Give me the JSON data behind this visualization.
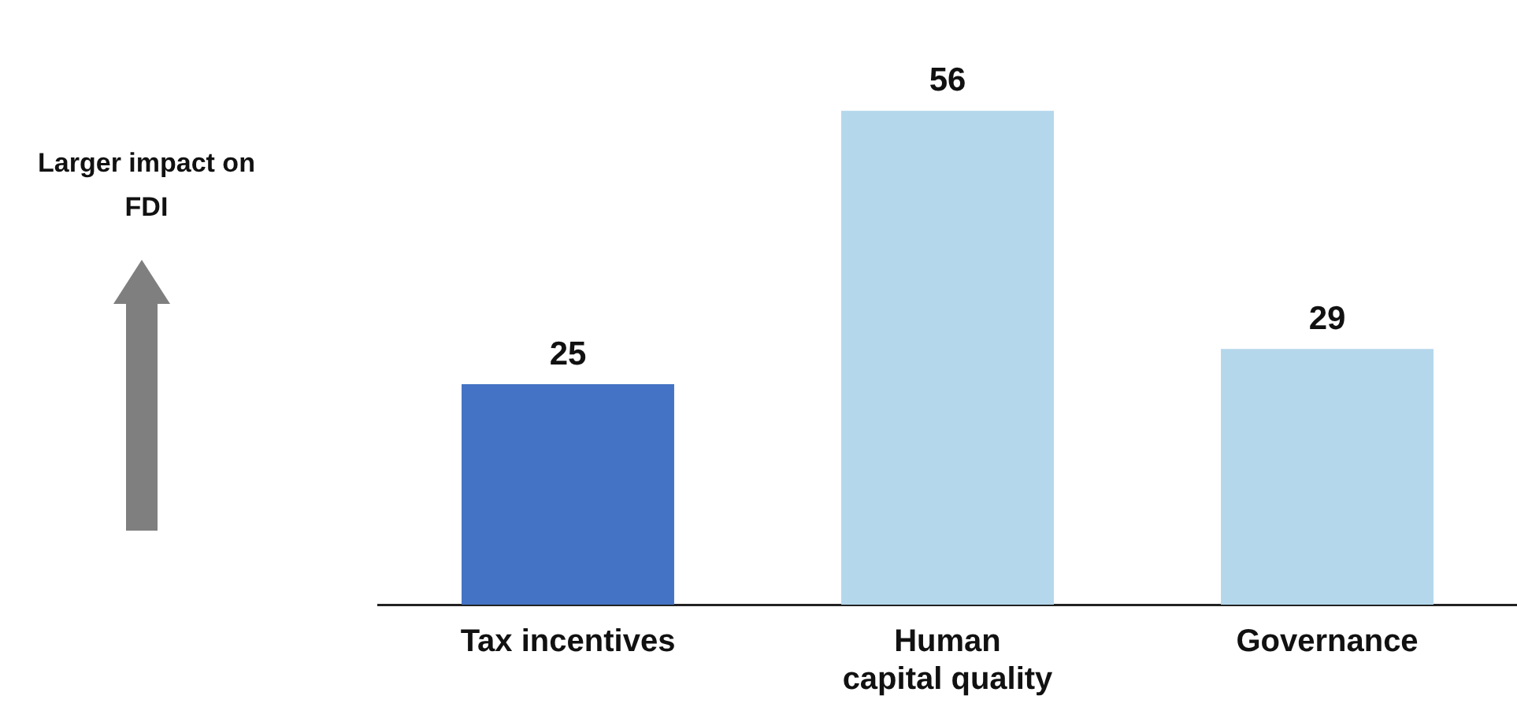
{
  "chart_data": {
    "type": "bar",
    "categories": [
      "Tax incentives",
      "Human capital quality",
      "Governance"
    ],
    "values": [
      25,
      56,
      29
    ],
    "colors": [
      "#4472c4",
      "#b4d7ec",
      "#b4d7ec"
    ],
    "data_labels": true,
    "grid": false,
    "legend": false,
    "tick_labels": "x",
    "annotations": [
      "Larger impact on FDI"
    ]
  }
}
